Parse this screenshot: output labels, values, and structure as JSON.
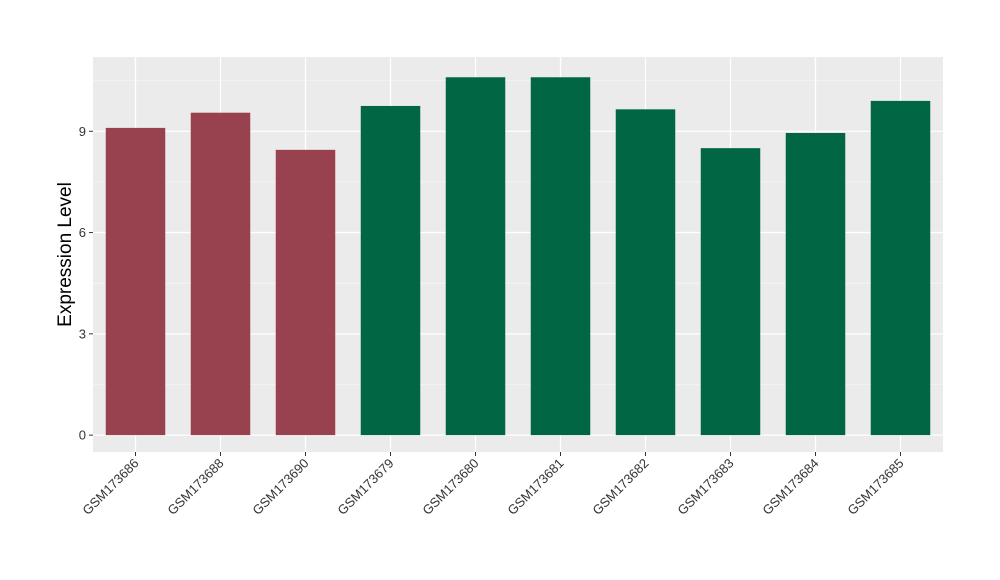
{
  "chart_data": {
    "type": "bar",
    "title": "",
    "xlabel": "",
    "ylabel": "Expression Level",
    "ylim": [
      -0.5,
      11.2
    ],
    "yticks": [
      0,
      3,
      6,
      9
    ],
    "grid": true,
    "colors": {
      "panel": "#ebebeb",
      "grid_major": "#ffffff",
      "group_a": "#99424f",
      "group_b": "#006644"
    },
    "categories": [
      "GSM173686",
      "GSM173688",
      "GSM173690",
      "GSM173679",
      "GSM173680",
      "GSM173681",
      "GSM173682",
      "GSM173683",
      "GSM173684",
      "GSM173685"
    ],
    "values": [
      9.1,
      9.55,
      8.45,
      9.75,
      10.6,
      10.6,
      9.65,
      8.5,
      8.95,
      9.9
    ],
    "bar_groups": [
      "a",
      "a",
      "a",
      "b",
      "b",
      "b",
      "b",
      "b",
      "b",
      "b"
    ]
  }
}
